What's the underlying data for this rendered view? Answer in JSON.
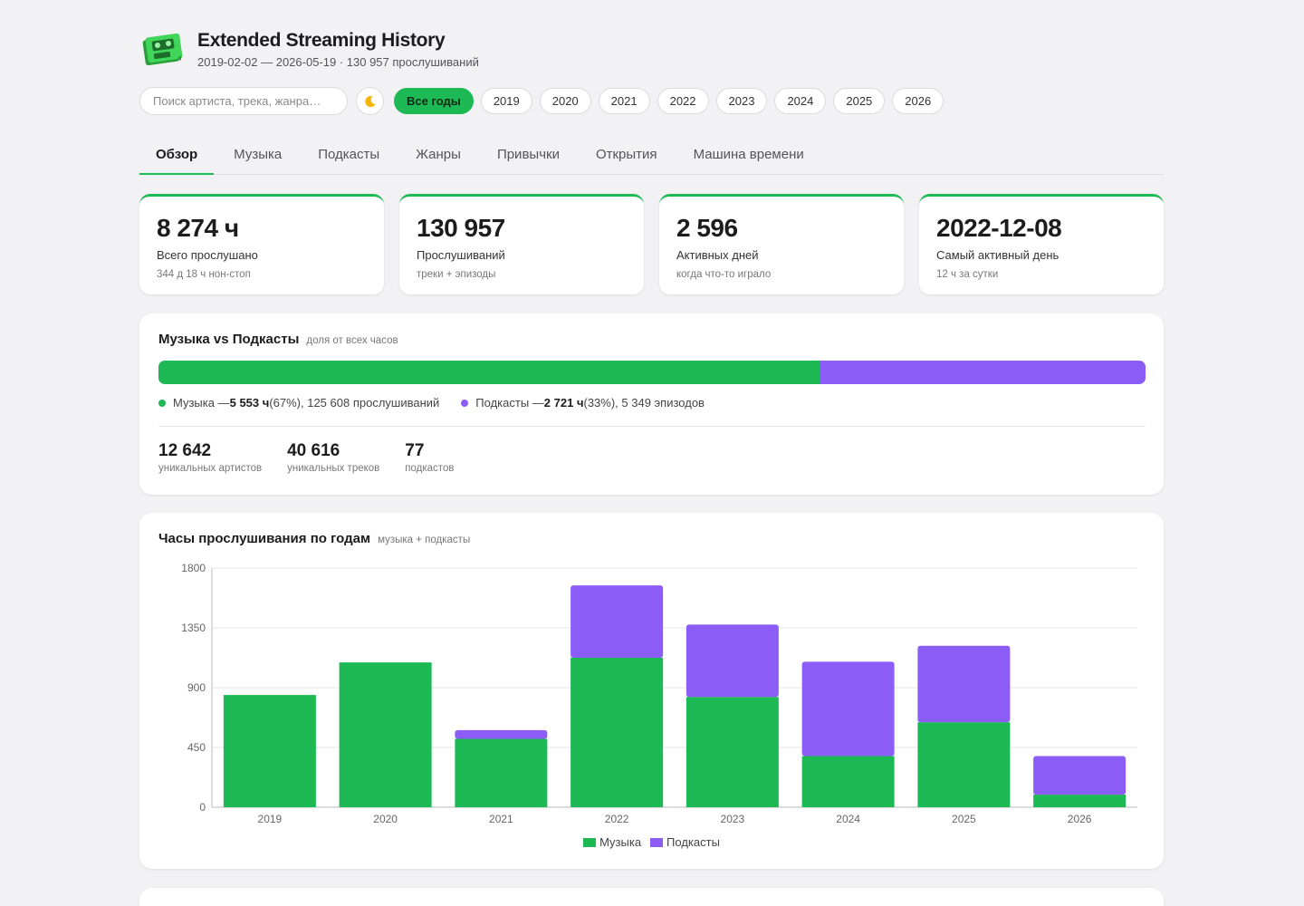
{
  "header": {
    "title": "Extended Streaming History",
    "subtitle": "2019-02-02 — 2026-05-19 · 130 957 прослушиваний"
  },
  "filters": {
    "search_placeholder": "Поиск артиста, трека, жанра…",
    "theme_icon": "moon-icon",
    "years": [
      "Все годы",
      "2019",
      "2020",
      "2021",
      "2022",
      "2023",
      "2024",
      "2025",
      "2026"
    ],
    "active_year": "Все годы"
  },
  "tabs": [
    "Обзор",
    "Музыка",
    "Подкасты",
    "Жанры",
    "Привычки",
    "Открытия",
    "Машина времени"
  ],
  "active_tab": "Обзор",
  "cards": [
    {
      "value": "8 274 ч",
      "label": "Всего прослушано",
      "sub": "344 д 18 ч нон-стоп"
    },
    {
      "value": "130 957",
      "label": "Прослушиваний",
      "sub": "треки + эпизоды"
    },
    {
      "value": "2 596",
      "label": "Активных дней",
      "sub": "когда что-то играло"
    },
    {
      "value": "2022-12-08",
      "label": "Самый активный день",
      "sub": "12 ч за сутки"
    }
  ],
  "music_vs_podcasts": {
    "title": "Музыка vs Подкасты",
    "hint": "доля от всех часов",
    "music_share": 0.67,
    "music": {
      "prefix": "Музыка — ",
      "hours": "5 553 ч",
      "rest": " (67%), 125 608 прослушиваний"
    },
    "podcasts": {
      "prefix": "Подкасты — ",
      "hours": "2 721 ч",
      "rest": " (33%), 5 349 эпизодов"
    },
    "stats": [
      {
        "value": "12 642",
        "label": "уникальных артистов"
      },
      {
        "value": "40 616",
        "label": "уникальных треков"
      },
      {
        "value": "77",
        "label": "подкастов"
      }
    ]
  },
  "colors": {
    "accent": "#1db954",
    "podcast": "#8b5cf6"
  },
  "yearly_chart": {
    "title": "Часы прослушивания по годам",
    "hint": "музыка + подкасты"
  },
  "chart_data": {
    "type": "bar",
    "stacked": true,
    "categories": [
      "2019",
      "2020",
      "2021",
      "2022",
      "2023",
      "2024",
      "2025",
      "2026"
    ],
    "series": [
      {
        "name": "Музыка",
        "color": "#1db954",
        "values": [
          845,
          1090,
          515,
          1125,
          830,
          385,
          640,
          95
        ]
      },
      {
        "name": "Подкасты",
        "color": "#8b5cf6",
        "values": [
          0,
          0,
          65,
          545,
          545,
          710,
          575,
          290
        ]
      }
    ],
    "ylim": [
      0,
      1800
    ],
    "yticks": [
      0,
      450,
      900,
      1350,
      1800
    ],
    "grid": true,
    "legend": "bottom"
  }
}
